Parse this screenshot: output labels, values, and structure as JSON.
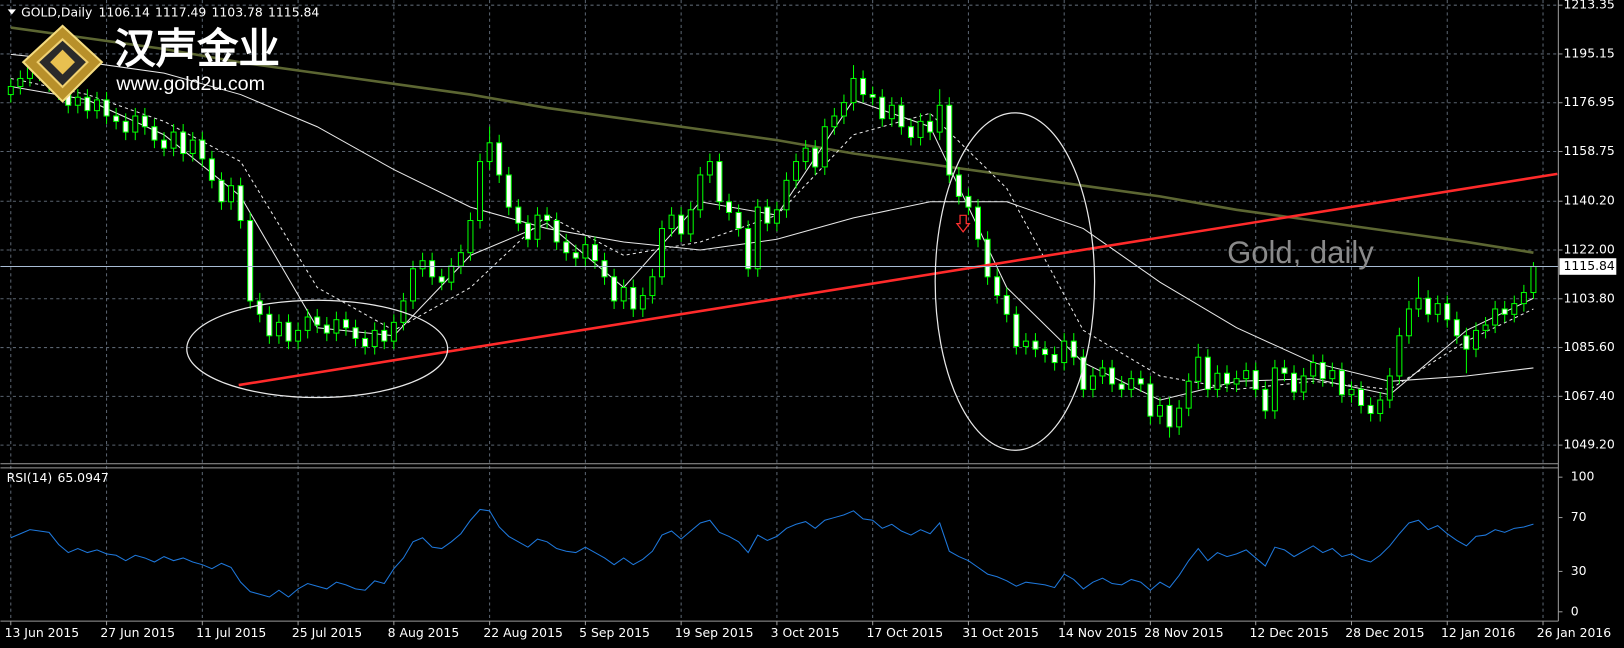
{
  "logo": {
    "title": "汉声金业",
    "url": "www.gold2u.com"
  },
  "chart_data": [
    {
      "type": "candlestick",
      "title": "GOLD,Daily",
      "watermark": "Gold, daily",
      "open": [
        1180,
        1183,
        1186,
        1190,
        1188,
        1184,
        1181,
        1176,
        1179,
        1174,
        1178,
        1172,
        1170,
        1166,
        1172,
        1168,
        1163,
        1160,
        1166,
        1158,
        1163,
        1156,
        1148,
        1140,
        1146,
        1133,
        1103,
        1098,
        1090,
        1095,
        1088,
        1092,
        1097,
        1094,
        1091,
        1096,
        1093,
        1089,
        1086,
        1092,
        1088,
        1095,
        1103,
        1115,
        1118,
        1112,
        1110,
        1116,
        1121,
        1133,
        1155,
        1162,
        1150,
        1138,
        1132,
        1126,
        1135,
        1133,
        1125,
        1121,
        1119,
        1124,
        1118,
        1112,
        1103,
        1108,
        1100,
        1105,
        1112,
        1130,
        1135,
        1128,
        1137,
        1150,
        1155,
        1140,
        1136,
        1130,
        1115,
        1138,
        1132,
        1137,
        1148,
        1155,
        1160,
        1153,
        1168,
        1172,
        1177,
        1186,
        1180,
        1179,
        1171,
        1176,
        1168,
        1164,
        1170,
        1166,
        1176,
        1150,
        1142,
        1138,
        1126,
        1112,
        1105,
        1098,
        1086,
        1088,
        1085,
        1083,
        1080,
        1088,
        1082,
        1070,
        1075,
        1078,
        1072,
        1070,
        1074,
        1072,
        1060,
        1064,
        1056,
        1063,
        1073,
        1082,
        1070,
        1076,
        1072,
        1074,
        1077,
        1070,
        1062,
        1078,
        1076,
        1069,
        1075,
        1080,
        1074,
        1077,
        1068,
        1070,
        1064,
        1061,
        1066,
        1075,
        1090,
        1100,
        1104,
        1098,
        1102,
        1096,
        1090,
        1085,
        1092,
        1094,
        1100,
        1098,
        1102,
        1106.14
      ],
      "high": [
        1186,
        1189,
        1193,
        1193,
        1191,
        1187,
        1184,
        1182,
        1182,
        1181,
        1181,
        1175,
        1173,
        1175,
        1175,
        1171,
        1166,
        1169,
        1169,
        1166,
        1166,
        1159,
        1151,
        1149,
        1149,
        1136,
        1106,
        1101,
        1098,
        1098,
        1095,
        1100,
        1100,
        1097,
        1099,
        1099,
        1096,
        1092,
        1095,
        1095,
        1098,
        1106,
        1118,
        1121,
        1121,
        1115,
        1119,
        1124,
        1136,
        1158,
        1168,
        1165,
        1153,
        1141,
        1135,
        1138,
        1138,
        1136,
        1128,
        1124,
        1127,
        1127,
        1121,
        1115,
        1111,
        1111,
        1108,
        1115,
        1133,
        1138,
        1138,
        1140,
        1153,
        1158,
        1158,
        1143,
        1139,
        1133,
        1141,
        1141,
        1140,
        1151,
        1158,
        1163,
        1163,
        1171,
        1175,
        1180,
        1191,
        1189,
        1183,
        1182,
        1179,
        1179,
        1171,
        1173,
        1173,
        1182,
        1179,
        1153,
        1145,
        1141,
        1129,
        1115,
        1108,
        1101,
        1091,
        1091,
        1088,
        1086,
        1091,
        1091,
        1085,
        1078,
        1081,
        1081,
        1075,
        1077,
        1077,
        1075,
        1067,
        1067,
        1066,
        1076,
        1087,
        1085,
        1079,
        1079,
        1077,
        1080,
        1080,
        1073,
        1081,
        1081,
        1079,
        1078,
        1083,
        1083,
        1080,
        1080,
        1073,
        1073,
        1067,
        1069,
        1078,
        1093,
        1103,
        1112,
        1107,
        1105,
        1105,
        1099,
        1093,
        1095,
        1097,
        1103,
        1103,
        1105,
        1109,
        1117.49
      ],
      "low": [
        1177,
        1180,
        1183,
        1185,
        1181,
        1178,
        1173,
        1173,
        1171,
        1171,
        1169,
        1167,
        1163,
        1163,
        1165,
        1160,
        1157,
        1157,
        1155,
        1155,
        1153,
        1145,
        1137,
        1137,
        1130,
        1100,
        1095,
        1087,
        1087,
        1085,
        1085,
        1089,
        1091,
        1088,
        1088,
        1090,
        1086,
        1083,
        1083,
        1085,
        1085,
        1092,
        1100,
        1112,
        1109,
        1107,
        1107,
        1113,
        1118,
        1130,
        1152,
        1147,
        1135,
        1129,
        1123,
        1123,
        1130,
        1122,
        1118,
        1116,
        1116,
        1115,
        1109,
        1100,
        1100,
        1097,
        1097,
        1102,
        1109,
        1127,
        1125,
        1125,
        1134,
        1147,
        1137,
        1133,
        1127,
        1112,
        1112,
        1129,
        1129,
        1134,
        1145,
        1152,
        1150,
        1150,
        1165,
        1169,
        1174,
        1177,
        1176,
        1168,
        1168,
        1165,
        1161,
        1161,
        1163,
        1163,
        1147,
        1139,
        1135,
        1123,
        1109,
        1102,
        1095,
        1083,
        1083,
        1082,
        1080,
        1077,
        1077,
        1079,
        1067,
        1067,
        1072,
        1069,
        1067,
        1067,
        1069,
        1057,
        1057,
        1052,
        1053,
        1060,
        1070,
        1067,
        1067,
        1069,
        1069,
        1071,
        1067,
        1059,
        1059,
        1073,
        1066,
        1066,
        1072,
        1071,
        1071,
        1065,
        1065,
        1061,
        1058,
        1058,
        1063,
        1072,
        1087,
        1097,
        1095,
        1095,
        1093,
        1087,
        1076,
        1082,
        1089,
        1091,
        1095,
        1095,
        1099,
        1103.78
      ],
      "close": [
        1183,
        1186,
        1190,
        1188,
        1184,
        1181,
        1176,
        1179,
        1174,
        1178,
        1172,
        1170,
        1166,
        1172,
        1168,
        1163,
        1160,
        1166,
        1158,
        1163,
        1156,
        1148,
        1140,
        1146,
        1133,
        1103,
        1098,
        1090,
        1095,
        1088,
        1092,
        1097,
        1094,
        1091,
        1096,
        1093,
        1089,
        1086,
        1092,
        1088,
        1095,
        1103,
        1115,
        1118,
        1112,
        1110,
        1116,
        1121,
        1133,
        1155,
        1162,
        1150,
        1138,
        1132,
        1126,
        1135,
        1133,
        1125,
        1121,
        1119,
        1124,
        1118,
        1112,
        1103,
        1108,
        1100,
        1105,
        1112,
        1130,
        1135,
        1128,
        1137,
        1150,
        1155,
        1140,
        1136,
        1130,
        1115,
        1138,
        1132,
        1137,
        1148,
        1155,
        1160,
        1153,
        1168,
        1172,
        1177,
        1186,
        1180,
        1179,
        1171,
        1176,
        1168,
        1164,
        1170,
        1166,
        1176,
        1150,
        1142,
        1138,
        1126,
        1112,
        1105,
        1098,
        1086,
        1088,
        1085,
        1083,
        1080,
        1088,
        1082,
        1070,
        1075,
        1078,
        1072,
        1070,
        1074,
        1072,
        1060,
        1064,
        1056,
        1063,
        1073,
        1082,
        1070,
        1076,
        1072,
        1074,
        1077,
        1070,
        1062,
        1078,
        1076,
        1069,
        1075,
        1080,
        1074,
        1077,
        1068,
        1070,
        1064,
        1061,
        1066,
        1075,
        1090,
        1100,
        1104,
        1098,
        1102,
        1096,
        1090,
        1085,
        1092,
        1094,
        1100,
        1098,
        1102,
        1106.14,
        1115.84
      ],
      "bull_color": "#000000",
      "bear_color": "#ffffff",
      "candle_outline": "#00ff00",
      "price_line_color": "#a8bcd4",
      "overlays": [
        {
          "color": "#5c6632",
          "dashed": false,
          "x": [
            0,
            8,
            16,
            24,
            32,
            40,
            48,
            56,
            64,
            72,
            80,
            88,
            96,
            104,
            112,
            120,
            128,
            136,
            144,
            152,
            159
          ],
          "values": [
            1205,
            1201,
            1197,
            1192,
            1188,
            1184,
            1180,
            1175,
            1171,
            1167,
            1163,
            1158,
            1154,
            1150,
            1146,
            1142,
            1137,
            1133,
            1129,
            1125,
            1121
          ]
        },
        {
          "color": "#e8e8e8",
          "dashed": false,
          "x": [
            0,
            8,
            16,
            24,
            32,
            40,
            48,
            56,
            64,
            72,
            80,
            88,
            96,
            104,
            112,
            120,
            128,
            136,
            144,
            152,
            159
          ],
          "values": [
            1195,
            1192,
            1188,
            1180,
            1168,
            1152,
            1138,
            1130,
            1125,
            1122,
            1126,
            1134,
            1140,
            1140,
            1130,
            1110,
            1093,
            1080,
            1073,
            1075,
            1078
          ]
        },
        {
          "color": "#e8e8e8",
          "dashed": true,
          "x": [
            0,
            8,
            16,
            24,
            32,
            40,
            48,
            56,
            64,
            72,
            80,
            88,
            96,
            104,
            112,
            120,
            128,
            136,
            144,
            152,
            159
          ],
          "values": [
            1186,
            1180,
            1170,
            1155,
            1108,
            1092,
            1108,
            1135,
            1120,
            1125,
            1135,
            1165,
            1173,
            1145,
            1092,
            1075,
            1070,
            1073,
            1070,
            1088,
            1100
          ]
        },
        {
          "color": "#e8e8e8",
          "dashed": false,
          "x": [
            0,
            8,
            16,
            24,
            32,
            40,
            48,
            56,
            64,
            72,
            80,
            88,
            96,
            104,
            112,
            120,
            128,
            136,
            144,
            152,
            159
          ],
          "values": [
            1183,
            1178,
            1165,
            1142,
            1093,
            1090,
            1120,
            1132,
            1108,
            1140,
            1135,
            1178,
            1168,
            1108,
            1080,
            1066,
            1073,
            1074,
            1068,
            1092,
            1104
          ]
        }
      ],
      "trendline": {
        "color": "#ff2a2a",
        "x": [
          23.8,
          161.5
        ],
        "values": [
          1071.6,
          1150.4
        ]
      },
      "xlim": [
        -1.08,
        161.6
      ],
      "xticks": [
        {
          "value": 0,
          "label": "13 Jun 2015"
        },
        {
          "value": 10,
          "label": "27 Jun 2015"
        },
        {
          "value": 20,
          "label": "11 Jul 2015"
        },
        {
          "value": 30,
          "label": "25 Jul 2015"
        },
        {
          "value": 40,
          "label": "8 Aug 2015"
        },
        {
          "value": 50,
          "label": "22 Aug 2015"
        },
        {
          "value": 60,
          "label": "5 Sep 2015"
        },
        {
          "value": 70,
          "label": "19 Sep 2015"
        },
        {
          "value": 80,
          "label": "3 Oct 2015"
        },
        {
          "value": 90,
          "label": "17 Oct 2015"
        },
        {
          "value": 100,
          "label": "31 Oct 2015"
        },
        {
          "value": 110,
          "label": "14 Nov 2015"
        },
        {
          "value": 119,
          "label": "28 Nov 2015"
        },
        {
          "value": 130,
          "label": "12 Dec 2015"
        },
        {
          "value": 140,
          "label": "28 Dec 2015"
        },
        {
          "value": 150,
          "label": "12 Jan 2016"
        },
        {
          "value": 160,
          "label": "26 Jan 2016"
        }
      ],
      "ylim": [
        1042.25,
        1215.28
      ],
      "yticks": [
        1213.35,
        1195.15,
        1176.95,
        1158.75,
        {
          "value": 1140.2,
          "label": "1140.20"
        },
        {
          "value": 1122,
          "label": "1122.00"
        },
        {
          "value": 1103.8,
          "label": "1103.80"
        },
        {
          "value": 1085.6,
          "label": "1085.60"
        },
        {
          "value": 1067.4,
          "label": "1067.40"
        },
        {
          "value": 1049.2,
          "label": "1049.20"
        }
      ],
      "grid": true
    },
    {
      "type": "line",
      "title": "RSI(14)",
      "color": "#1e78dc",
      "values": [
        55,
        58,
        61,
        60,
        59,
        50,
        44,
        47,
        44,
        46,
        43,
        42,
        38,
        42,
        40,
        37,
        41,
        38,
        40,
        37,
        35,
        32,
        36,
        33,
        22,
        15,
        13,
        11,
        16,
        11,
        17,
        21,
        19,
        17,
        22,
        20,
        17,
        16,
        23,
        21,
        32,
        40,
        52,
        55,
        48,
        47,
        52,
        58,
        68,
        76,
        75,
        63,
        56,
        52,
        48,
        54,
        52,
        47,
        45,
        44,
        48,
        44,
        40,
        35,
        40,
        35,
        39,
        45,
        57,
        60,
        54,
        60,
        66,
        68,
        59,
        56,
        52,
        44,
        57,
        53,
        56,
        62,
        65,
        67,
        62,
        68,
        70,
        72,
        75,
        69,
        68,
        62,
        65,
        60,
        57,
        61,
        58,
        66,
        45,
        41,
        38,
        33,
        28,
        26,
        23,
        19,
        22,
        21,
        20,
        18,
        28,
        24,
        17,
        22,
        25,
        21,
        20,
        24,
        22,
        16,
        22,
        18,
        27,
        38,
        47,
        38,
        44,
        41,
        43,
        46,
        40,
        34,
        48,
        46,
        41,
        45,
        49,
        44,
        47,
        41,
        43,
        39,
        37,
        42,
        49,
        58,
        66,
        68,
        61,
        64,
        58,
        53,
        49,
        56,
        57,
        61,
        59,
        62,
        63,
        65.0947
      ],
      "xlim": [
        -1.08,
        161.6
      ],
      "ylim": [
        -6.9,
        106.9
      ],
      "yticks": [
        100,
        70,
        30,
        0
      ]
    }
  ]
}
